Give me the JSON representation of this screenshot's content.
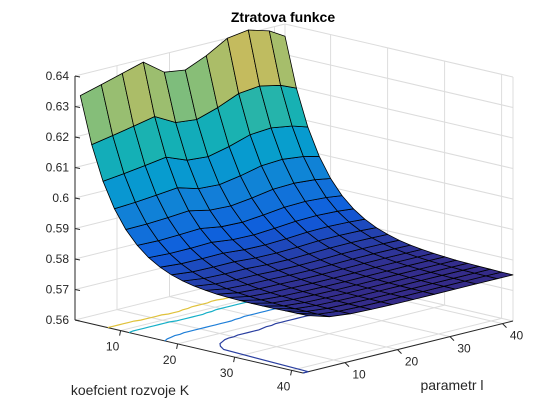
{
  "chart_data": {
    "type": "surface",
    "title": "Ztratova funkce",
    "xlabel": "koefcient rozvoje K",
    "ylabel": "parametr l",
    "zlabel": "",
    "x_ticks": [
      10,
      20,
      30,
      40
    ],
    "y_ticks": [
      10,
      20,
      30,
      40
    ],
    "z_ticks": [
      0.56,
      0.57,
      0.58,
      0.59,
      0.6,
      0.61,
      0.62,
      0.63,
      0.64
    ],
    "z_tick_labels": [
      "0.56",
      "0.57",
      "0.58",
      "0.59",
      "0.6",
      "0.61",
      "0.62",
      "0.63",
      "0.64"
    ],
    "xlim": [
      2,
      42
    ],
    "ylim": [
      2,
      42
    ],
    "zlim": [
      0.56,
      0.64
    ],
    "colormap": "parula",
    "grid": true,
    "contour_projection": true,
    "surface_description": "loss decreases with increasing K; highest near K≈2, with peaks ~0.64 at several l values",
    "edge_profile_l": [
      3,
      7,
      11,
      15,
      19,
      23,
      27,
      31,
      35,
      39,
      42
    ],
    "edge_profile_z_at_min_k": [
      0.633,
      0.635,
      0.637,
      0.639,
      0.634,
      0.633,
      0.636,
      0.64,
      0.641,
      0.639,
      0.636
    ],
    "min_value": 0.575
  }
}
